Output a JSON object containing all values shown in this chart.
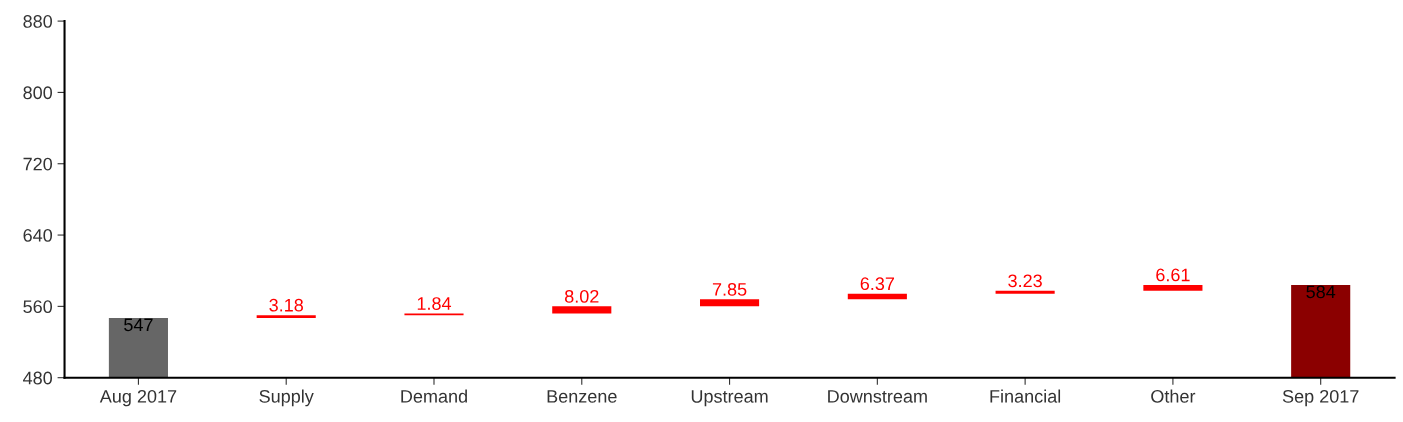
{
  "chart_data": {
    "type": "bar",
    "categories": [
      "Aug 2017",
      "Supply",
      "Demand",
      "Benzene",
      "Upstream",
      "Downstream",
      "Financial",
      "Other",
      "Sep 2017"
    ],
    "values": [
      547,
      3.18,
      1.84,
      8.02,
      7.85,
      6.37,
      3.23,
      6.61,
      584
    ],
    "base": [
      null,
      547,
      550.18,
      552.02,
      560.04,
      567.89,
      574.26,
      577.49,
      null
    ],
    "colors": [
      "#666666",
      "#ff0000",
      "#ff0000",
      "#ff0000",
      "#ff0000",
      "#ff0000",
      "#ff0000",
      "#ff0000",
      "#8b0000"
    ],
    "ylim": [
      480,
      880
    ],
    "yticks": [
      480,
      560,
      640,
      720,
      800,
      880
    ],
    "data_labels": true,
    "grid": false,
    "legend": false
  }
}
